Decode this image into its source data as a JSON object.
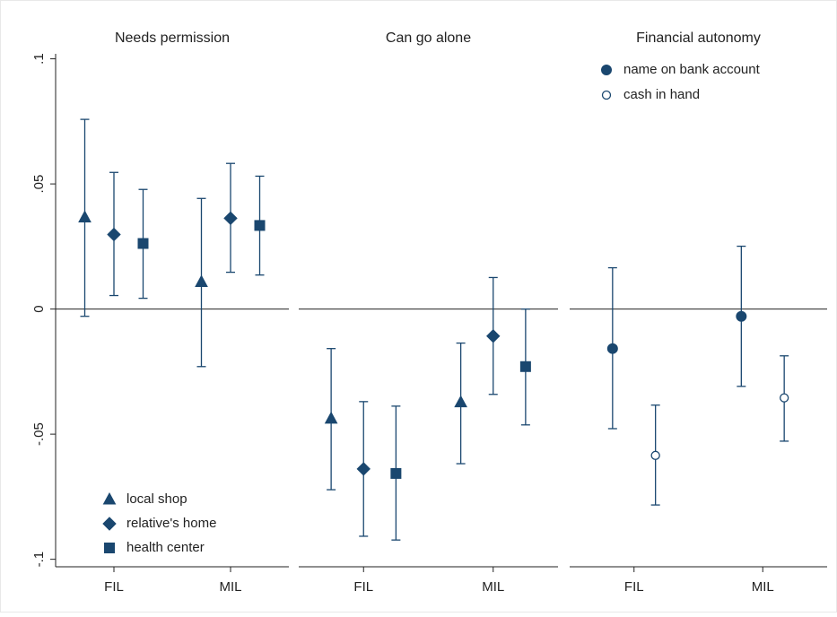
{
  "chart_data": [
    {
      "type": "errorbar",
      "title": "Needs permission",
      "categories": [
        "FIL",
        "MIL"
      ],
      "ylim": [
        -0.103,
        0.102
      ],
      "yticks": [
        {
          "value": 0.1,
          "label": ".1"
        },
        {
          "value": 0.05,
          "label": ".05"
        },
        0,
        {
          "value": -0.05,
          "label": "-.05"
        },
        {
          "value": -0.1,
          "label": "-.1"
        }
      ],
      "refline": 0,
      "legend": "bottom-left",
      "series": [
        {
          "name": "local shop",
          "marker": "triangle",
          "color": "#1a476f",
          "values": [
            0.0366,
            0.0108
          ],
          "lower": [
            -0.0029,
            -0.023
          ],
          "upper": [
            0.0758,
            0.0442
          ]
        },
        {
          "name": "relative's home",
          "marker": "diamond",
          "color": "#1a476f",
          "values": [
            0.0298,
            0.0363
          ],
          "lower": [
            0.0054,
            0.0147
          ],
          "upper": [
            0.0546,
            0.0582
          ]
        },
        {
          "name": "health center",
          "marker": "square",
          "color": "#1a476f",
          "values": [
            0.0262,
            0.0334
          ],
          "lower": [
            0.0043,
            0.0136
          ],
          "upper": [
            0.0478,
            0.0531
          ]
        }
      ]
    },
    {
      "type": "errorbar",
      "title": "Can go alone",
      "categories": [
        "FIL",
        "MIL"
      ],
      "ylim": [
        -0.103,
        0.102
      ],
      "refline": 0,
      "series": [
        {
          "marker": "triangle",
          "color": "#1a476f",
          "values": [
            -0.0438,
            -0.0373
          ],
          "lower": [
            -0.0722,
            -0.0618
          ],
          "upper": [
            -0.0158,
            -0.0136
          ]
        },
        {
          "marker": "diamond",
          "color": "#1a476f",
          "values": [
            -0.0639,
            -0.0108
          ],
          "lower": [
            -0.0908,
            -0.0341
          ],
          "upper": [
            -0.037,
            0.0126
          ]
        },
        {
          "marker": "square",
          "color": "#1a476f",
          "values": [
            -0.0657,
            -0.023
          ],
          "lower": [
            -0.0923,
            -0.0463
          ],
          "upper": [
            -0.0388,
            0
          ]
        }
      ]
    },
    {
      "type": "errorbar",
      "title": "Financial autonomy",
      "categories": [
        "FIL",
        "MIL"
      ],
      "ylim": [
        -0.103,
        0.102
      ],
      "refline": 0,
      "legend": "top",
      "series": [
        {
          "name": "name on bank account",
          "marker": "circle",
          "color": "#1a476f",
          "values": [
            -0.0158,
            -0.0029
          ],
          "lower": [
            -0.0478,
            -0.0309
          ],
          "upper": [
            0.0165,
            0.0251
          ]
        },
        {
          "name": "cash in hand",
          "marker": "circle-open",
          "color": "#1a476f",
          "values": [
            -0.0585,
            -0.0355
          ],
          "lower": [
            -0.0783,
            -0.0528
          ],
          "upper": [
            -0.0384,
            -0.0187
          ]
        }
      ]
    }
  ]
}
